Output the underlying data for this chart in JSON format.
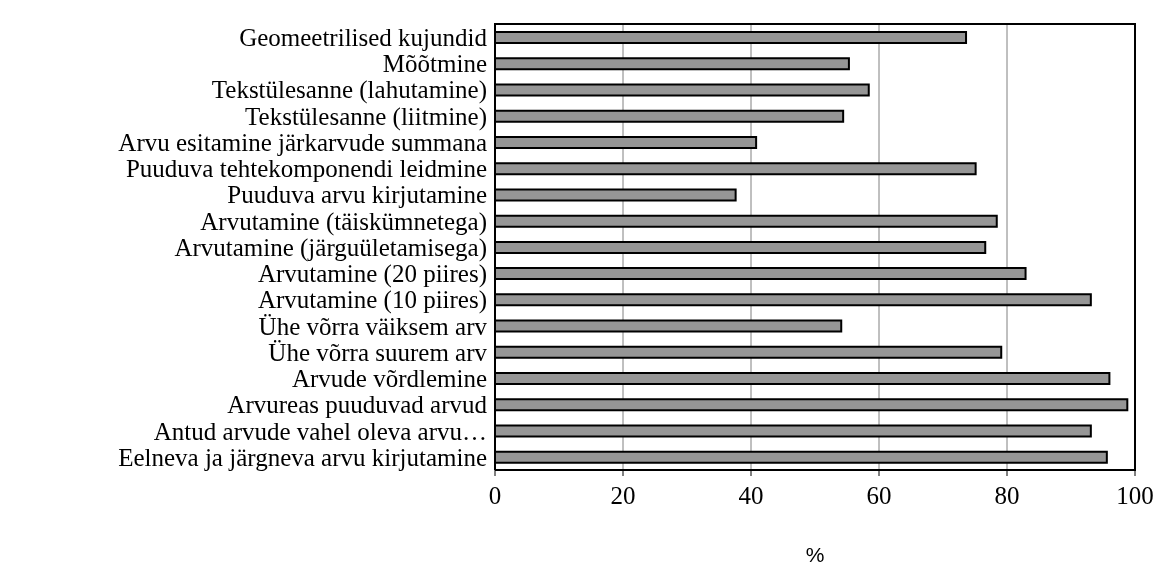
{
  "chart_data": {
    "type": "bar",
    "orientation": "horizontal",
    "xlabel": "%",
    "categories": [
      "Geomeetrilised kujundid",
      "Mõõtmine",
      "Tekstülesanne (lahutamine)",
      "Tekstülesanne (liitmine)",
      "Arvu esitamine järkarvude summana",
      "Puuduva tehtekomponendi leidmine",
      "Puuduva arvu kirjutamine",
      "Arvutamine (täiskümnetega)",
      "Arvutamine (järguületamisega)",
      "Arvutamine (20 piires)",
      "Arvutamine (10 piires)",
      "Ühe võrra väiksem arv",
      "Ühe võrra suurem arv",
      "Arvude võrdlemine",
      "Arvureas puuduvad arvud",
      "Antud arvude vahel oleva arvu…",
      "Eelneva ja järgneva arvu kirjutamine"
    ],
    "values": [
      73.6,
      55.3,
      58.4,
      54.4,
      40.8,
      75.1,
      37.6,
      78.4,
      76.6,
      82.9,
      93.1,
      54.1,
      79.1,
      96.0,
      98.8,
      93.1,
      95.6
    ],
    "color": "#969696",
    "xlim": [
      0,
      100
    ],
    "xticks": [
      0,
      20,
      40,
      60,
      80,
      100
    ],
    "grid": "x"
  }
}
